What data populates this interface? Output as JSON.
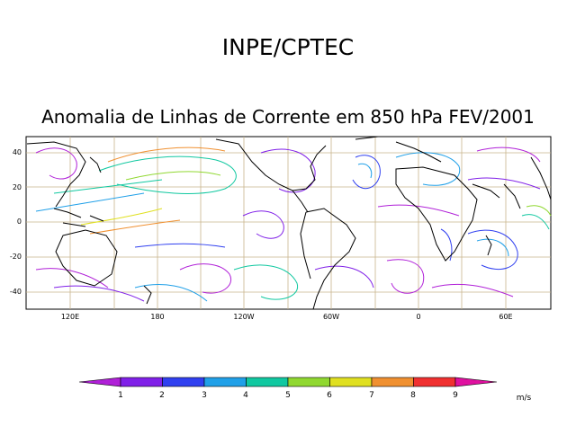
{
  "header": {
    "title": "INPE/CPTEC",
    "subtitle": "Anomalia de Linhas de Corrente em 850 hPa FEV/2001"
  },
  "map": {
    "lat_labels": [
      "40",
      "20",
      "0",
      "-20",
      "-40"
    ],
    "lon_labels": [
      "120E",
      "180",
      "120W",
      "60W",
      "0",
      "60E"
    ],
    "gridline_color": "#c8b48c",
    "land_color": "#000000"
  },
  "colorbar": {
    "labels": [
      "1",
      "2",
      "3",
      "4",
      "5",
      "6",
      "7",
      "8",
      "9"
    ],
    "unit": "m/s",
    "colors": [
      "#b020d8",
      "#8020e8",
      "#3040f0",
      "#20a0e8",
      "#10c8a0",
      "#90d830",
      "#e0e020",
      "#f09030",
      "#f03030",
      "#e010a0"
    ]
  }
}
